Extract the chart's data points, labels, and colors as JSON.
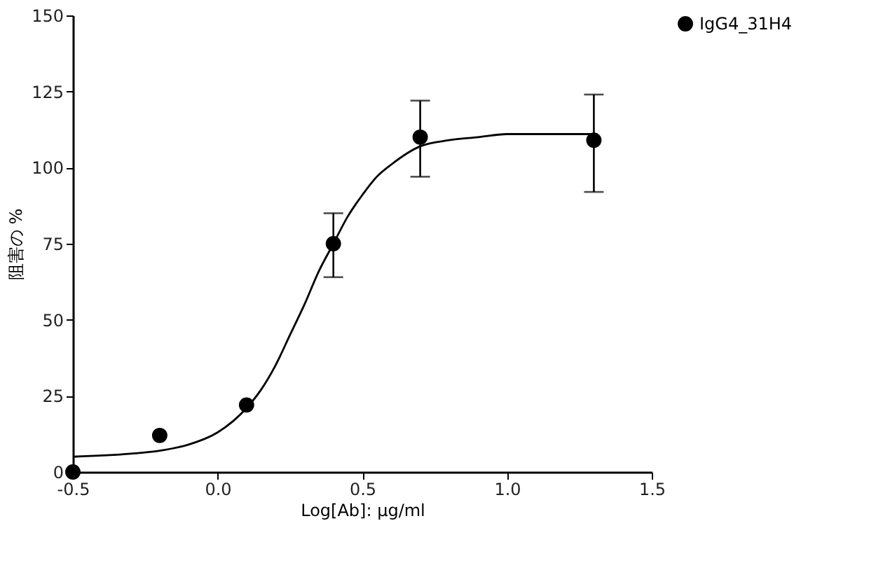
{
  "chart_data": {
    "type": "scatter",
    "xlabel": "Log[Ab]: μg/ml",
    "ylabel": "阻害の %",
    "xlim": [
      -0.5,
      1.5
    ],
    "xticks": [
      {
        "value": -0.5,
        "label": "-0.5"
      },
      {
        "value": 0,
        "label": "0.0"
      },
      {
        "value": 0.5,
        "label": "0.5"
      },
      {
        "value": 1,
        "label": "1.0"
      },
      {
        "value": 1.5,
        "label": "1.5"
      }
    ],
    "ylim": [
      0,
      150
    ],
    "yticks": [
      0,
      25,
      50,
      75,
      100,
      125,
      150
    ],
    "grid": false,
    "legend": "right",
    "marker": "circle",
    "series": [
      {
        "name": "IgG4_31H4",
        "color": "#000000",
        "type": "scatter",
        "x": [
          -0.5,
          -0.2,
          0.1,
          0.4,
          0.7,
          1.3
        ],
        "values": [
          0,
          12,
          22,
          75,
          110,
          109
        ],
        "errors": [
          null,
          null,
          null,
          [
            64,
            85
          ],
          [
            97,
            122
          ],
          [
            92,
            124
          ]
        ]
      },
      {
        "type": "line",
        "color": "#000000",
        "marker": "none",
        "line_style": "solid",
        "x": [
          -0.5,
          -0.3,
          -0.2,
          -0.1,
          0.0,
          0.1,
          0.15,
          0.2,
          0.25,
          0.3,
          0.35,
          0.4,
          0.45,
          0.5,
          0.55,
          0.6,
          0.7,
          0.8,
          0.9,
          1.0,
          1.3
        ],
        "values": [
          5,
          6,
          7,
          9,
          13,
          21,
          27,
          35,
          45,
          55,
          66,
          75,
          84,
          91,
          97,
          101,
          107,
          109,
          110,
          111,
          111
        ]
      }
    ]
  }
}
